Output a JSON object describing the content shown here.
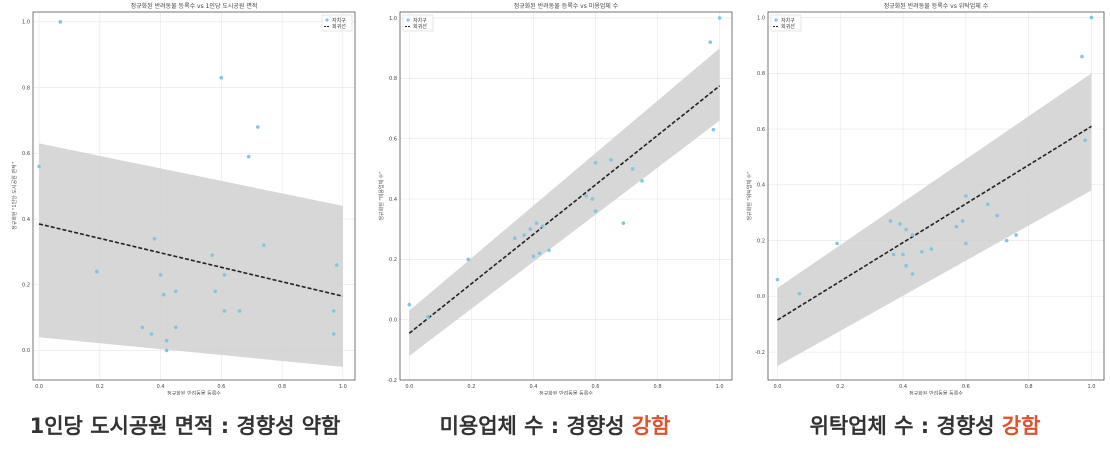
{
  "chart_data": [
    {
      "type": "scatter",
      "title": "정규화된 반려동물 등록수 vs 1인당 도시공원 면적",
      "xlabel": "정규화된 반려동물 등록수",
      "ylabel": "정규화된 \"1인당 도시공원 면적\"",
      "xlim": [
        -0.02,
        1.04
      ],
      "ylim": [
        -0.09,
        1.03
      ],
      "xticks": [
        "0.0",
        "0.2",
        "0.4",
        "0.6",
        "0.8",
        "1.0"
      ],
      "xtick_values": [
        0,
        0.2,
        0.4,
        0.6,
        0.8,
        1.0
      ],
      "yticks": [
        "0.0",
        "0.2",
        "0.4",
        "0.6",
        "0.8",
        "1.0"
      ],
      "ytick_values": [
        0,
        0.2,
        0.4,
        0.6,
        0.8,
        1.0
      ],
      "grid": true,
      "legend": {
        "position": "top-right",
        "entries": [
          "자치구",
          "회귀선"
        ]
      },
      "regression": {
        "x": [
          0,
          1
        ],
        "y": [
          0.385,
          0.165
        ],
        "ci_upper": [
          0.63,
          0.44
        ],
        "ci_lower": [
          0.04,
          -0.05
        ]
      },
      "points": [
        {
          "x": 0.07,
          "y": 1.0
        },
        {
          "x": 0.0,
          "y": 0.56
        },
        {
          "x": 0.6,
          "y": 0.83
        },
        {
          "x": 0.72,
          "y": 0.68
        },
        {
          "x": 0.69,
          "y": 0.59
        },
        {
          "x": 0.38,
          "y": 0.34
        },
        {
          "x": 0.19,
          "y": 0.24
        },
        {
          "x": 0.74,
          "y": 0.32
        },
        {
          "x": 0.57,
          "y": 0.29
        },
        {
          "x": 0.4,
          "y": 0.23
        },
        {
          "x": 0.61,
          "y": 0.23
        },
        {
          "x": 0.45,
          "y": 0.18
        },
        {
          "x": 0.41,
          "y": 0.17
        },
        {
          "x": 0.58,
          "y": 0.18
        },
        {
          "x": 0.98,
          "y": 0.26
        },
        {
          "x": 0.61,
          "y": 0.12
        },
        {
          "x": 0.66,
          "y": 0.12
        },
        {
          "x": 0.34,
          "y": 0.07
        },
        {
          "x": 0.45,
          "y": 0.07
        },
        {
          "x": 0.37,
          "y": 0.05
        },
        {
          "x": 0.42,
          "y": 0.03
        },
        {
          "x": 0.42,
          "y": 0.0
        },
        {
          "x": 0.97,
          "y": 0.12
        },
        {
          "x": 0.97,
          "y": 0.05
        }
      ]
    },
    {
      "type": "scatter",
      "title": "정규화된 반려동물 등록수 vs 미용업체 수",
      "xlabel": "정규화된 반려동물 등록수",
      "ylabel": "정규화된 \"미용업체 수\"",
      "xlim": [
        -0.03,
        1.04
      ],
      "ylim": [
        -0.2,
        1.02
      ],
      "xticks": [
        "0.0",
        "0.2",
        "0.4",
        "0.6",
        "0.8",
        "1.0"
      ],
      "xtick_values": [
        0,
        0.2,
        0.4,
        0.6,
        0.8,
        1.0
      ],
      "yticks": [
        "-0.2",
        "0.0",
        "0.2",
        "0.4",
        "0.6",
        "0.8",
        "1.0"
      ],
      "ytick_values": [
        -0.2,
        0,
        0.2,
        0.4,
        0.6,
        0.8,
        1.0
      ],
      "grid": true,
      "legend": {
        "position": "top-left",
        "entries": [
          "자치구",
          "회귀선"
        ]
      },
      "regression": {
        "x": [
          0,
          1
        ],
        "y": [
          -0.045,
          0.775
        ],
        "ci_upper": [
          0.03,
          0.9
        ],
        "ci_lower": [
          -0.12,
          0.66
        ]
      },
      "points": [
        {
          "x": 0.0,
          "y": 0.05
        },
        {
          "x": 0.06,
          "y": 0.01
        },
        {
          "x": 0.19,
          "y": 0.2
        },
        {
          "x": 0.34,
          "y": 0.27
        },
        {
          "x": 0.37,
          "y": 0.28
        },
        {
          "x": 0.39,
          "y": 0.3
        },
        {
          "x": 0.41,
          "y": 0.32
        },
        {
          "x": 0.43,
          "y": 0.31
        },
        {
          "x": 0.4,
          "y": 0.21
        },
        {
          "x": 0.42,
          "y": 0.22
        },
        {
          "x": 0.45,
          "y": 0.23
        },
        {
          "x": 0.57,
          "y": 0.41
        },
        {
          "x": 0.59,
          "y": 0.4
        },
        {
          "x": 0.6,
          "y": 0.36
        },
        {
          "x": 0.6,
          "y": 0.52
        },
        {
          "x": 0.65,
          "y": 0.53
        },
        {
          "x": 0.72,
          "y": 0.5
        },
        {
          "x": 0.75,
          "y": 0.46
        },
        {
          "x": 0.69,
          "y": 0.32
        },
        {
          "x": 0.97,
          "y": 0.92
        },
        {
          "x": 0.98,
          "y": 0.63
        },
        {
          "x": 1.0,
          "y": 1.0
        }
      ]
    },
    {
      "type": "scatter",
      "title": "정규화된 반려동물 등록수 vs 위탁업체 수",
      "xlabel": "정규화된 반려동물 등록수",
      "ylabel": "정규화된 \"위탁업체 수\"",
      "xlim": [
        -0.03,
        1.04
      ],
      "ylim": [
        -0.3,
        1.02
      ],
      "xticks": [
        "0.0",
        "0.2",
        "0.4",
        "0.6",
        "0.8",
        "1.0"
      ],
      "xtick_values": [
        0,
        0.2,
        0.4,
        0.6,
        0.8,
        1.0
      ],
      "yticks": [
        "-0.2",
        "0.0",
        "0.2",
        "0.4",
        "0.6",
        "0.8",
        "1.0"
      ],
      "ytick_values": [
        -0.2,
        0,
        0.2,
        0.4,
        0.6,
        0.8,
        1.0
      ],
      "grid": true,
      "legend": {
        "position": "top-left",
        "entries": [
          "자치구",
          "회귀선"
        ]
      },
      "regression": {
        "x": [
          0,
          1
        ],
        "y": [
          -0.085,
          0.61
        ],
        "ci_upper": [
          0.03,
          0.8
        ],
        "ci_lower": [
          -0.25,
          0.38
        ]
      },
      "points": [
        {
          "x": 0.0,
          "y": 0.06
        },
        {
          "x": 0.07,
          "y": 0.01
        },
        {
          "x": 0.19,
          "y": 0.19
        },
        {
          "x": 0.36,
          "y": 0.27
        },
        {
          "x": 0.39,
          "y": 0.26
        },
        {
          "x": 0.41,
          "y": 0.24
        },
        {
          "x": 0.43,
          "y": 0.22
        },
        {
          "x": 0.4,
          "y": 0.15
        },
        {
          "x": 0.37,
          "y": 0.15
        },
        {
          "x": 0.41,
          "y": 0.11
        },
        {
          "x": 0.43,
          "y": 0.08
        },
        {
          "x": 0.46,
          "y": 0.16
        },
        {
          "x": 0.49,
          "y": 0.17
        },
        {
          "x": 0.57,
          "y": 0.25
        },
        {
          "x": 0.59,
          "y": 0.27
        },
        {
          "x": 0.6,
          "y": 0.36
        },
        {
          "x": 0.6,
          "y": 0.19
        },
        {
          "x": 0.67,
          "y": 0.33
        },
        {
          "x": 0.7,
          "y": 0.29
        },
        {
          "x": 0.73,
          "y": 0.2
        },
        {
          "x": 0.76,
          "y": 0.22
        },
        {
          "x": 0.97,
          "y": 0.86
        },
        {
          "x": 0.98,
          "y": 0.56
        },
        {
          "x": 1.0,
          "y": 1.0
        }
      ]
    }
  ],
  "captions": [
    {
      "text": "1인당 도시공원 면적 : 경향성 약함",
      "strong": ""
    },
    {
      "text": "미용업체 수 : 경향성 ",
      "strong": "강함"
    },
    {
      "text": "위탁업체 수 : 경향성 ",
      "strong": "강함"
    }
  ],
  "colors": {
    "point": "#7fc6e6",
    "regression": "#222222",
    "ci_band": "#d0d0d0",
    "grid": "#e6e6e6",
    "caption_accent": "#e0522c"
  }
}
